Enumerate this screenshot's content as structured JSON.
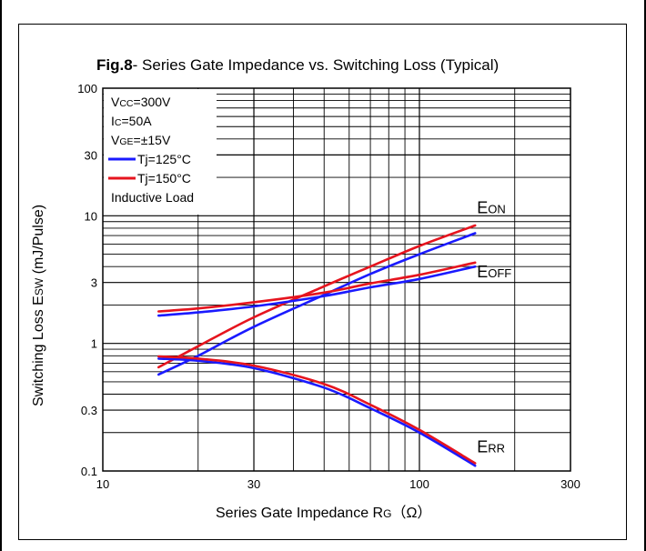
{
  "chart_data": {
    "type": "line",
    "title_bold": "Fig.8",
    "title_rest": "- Series Gate Impedance vs. Switching Loss  (Typical)",
    "xlabel": {
      "text": "Series Gate Impedance R",
      "sub": "G",
      "unit": "（Ω）"
    },
    "ylabel": {
      "text": "Switching Loss E",
      "sub": "SW",
      "unit": " (mJ/Pulse)"
    },
    "x_scale": "log",
    "y_scale": "log",
    "xlim": [
      10,
      300
    ],
    "ylim": [
      0.1,
      100
    ],
    "x_ticks": [
      {
        "value": 10,
        "label": "10"
      },
      {
        "value": 30,
        "label": "30"
      },
      {
        "value": 100,
        "label": "100"
      },
      {
        "value": 300,
        "label": "300"
      }
    ],
    "y_ticks": [
      {
        "value": 0.1,
        "label": "0.1"
      },
      {
        "value": 0.3,
        "label": "0.3"
      },
      {
        "value": 1,
        "label": "1"
      },
      {
        "value": 3,
        "label": "3"
      },
      {
        "value": 10,
        "label": "10"
      },
      {
        "value": 30,
        "label": "30"
      },
      {
        "value": 100,
        "label": "100"
      }
    ],
    "grid": true,
    "conditions": [
      {
        "main": "V",
        "sub": "CC",
        "rest": "=300V"
      },
      {
        "main": "I",
        "sub": "C",
        "rest": "=50A"
      },
      {
        "main": "V",
        "sub": "GE",
        "rest": "=±15V"
      }
    ],
    "legend": [
      {
        "label": "Tj=125°C",
        "color": "#1a1aff"
      },
      {
        "label": "Tj=150°C",
        "color": "#e6141e"
      }
    ],
    "note": "Inductive Load",
    "series": [
      {
        "group": "E_ON",
        "tj": "125°C",
        "color": "#1a1aff",
        "x": [
          15,
          20,
          30,
          50,
          70,
          100,
          150
        ],
        "y": [
          0.57,
          0.8,
          1.35,
          2.4,
          3.5,
          5.0,
          7.3
        ]
      },
      {
        "group": "E_ON",
        "tj": "150°C",
        "color": "#e6141e",
        "x": [
          15,
          20,
          30,
          50,
          70,
          100,
          150
        ],
        "y": [
          0.65,
          0.95,
          1.6,
          2.8,
          4.0,
          5.8,
          8.4
        ]
      },
      {
        "group": "E_OFF",
        "tj": "125°C",
        "color": "#1a1aff",
        "x": [
          15,
          20,
          30,
          50,
          70,
          100,
          150
        ],
        "y": [
          1.65,
          1.75,
          1.95,
          2.35,
          2.75,
          3.2,
          4.0
        ]
      },
      {
        "group": "E_OFF",
        "tj": "150°C",
        "color": "#e6141e",
        "x": [
          15,
          20,
          30,
          50,
          70,
          100,
          150
        ],
        "y": [
          1.78,
          1.88,
          2.1,
          2.5,
          2.95,
          3.45,
          4.3
        ]
      },
      {
        "group": "E_RR",
        "tj": "125°C",
        "color": "#1a1aff",
        "x": [
          15,
          20,
          30,
          50,
          70,
          100,
          150
        ],
        "y": [
          0.76,
          0.73,
          0.64,
          0.45,
          0.31,
          0.2,
          0.11
        ]
      },
      {
        "group": "E_RR",
        "tj": "150°C",
        "color": "#e6141e",
        "x": [
          15,
          20,
          30,
          50,
          70,
          100,
          150
        ],
        "y": [
          0.79,
          0.76,
          0.67,
          0.48,
          0.33,
          0.21,
          0.115
        ]
      }
    ],
    "curve_labels": [
      {
        "main": "E",
        "sub": "ON",
        "x": 150,
        "y": 10.5
      },
      {
        "main": "E",
        "sub": "OFF",
        "x": 150,
        "y": 3.3
      },
      {
        "main": "E",
        "sub": "RR",
        "x": 150,
        "y": 0.14
      }
    ]
  }
}
